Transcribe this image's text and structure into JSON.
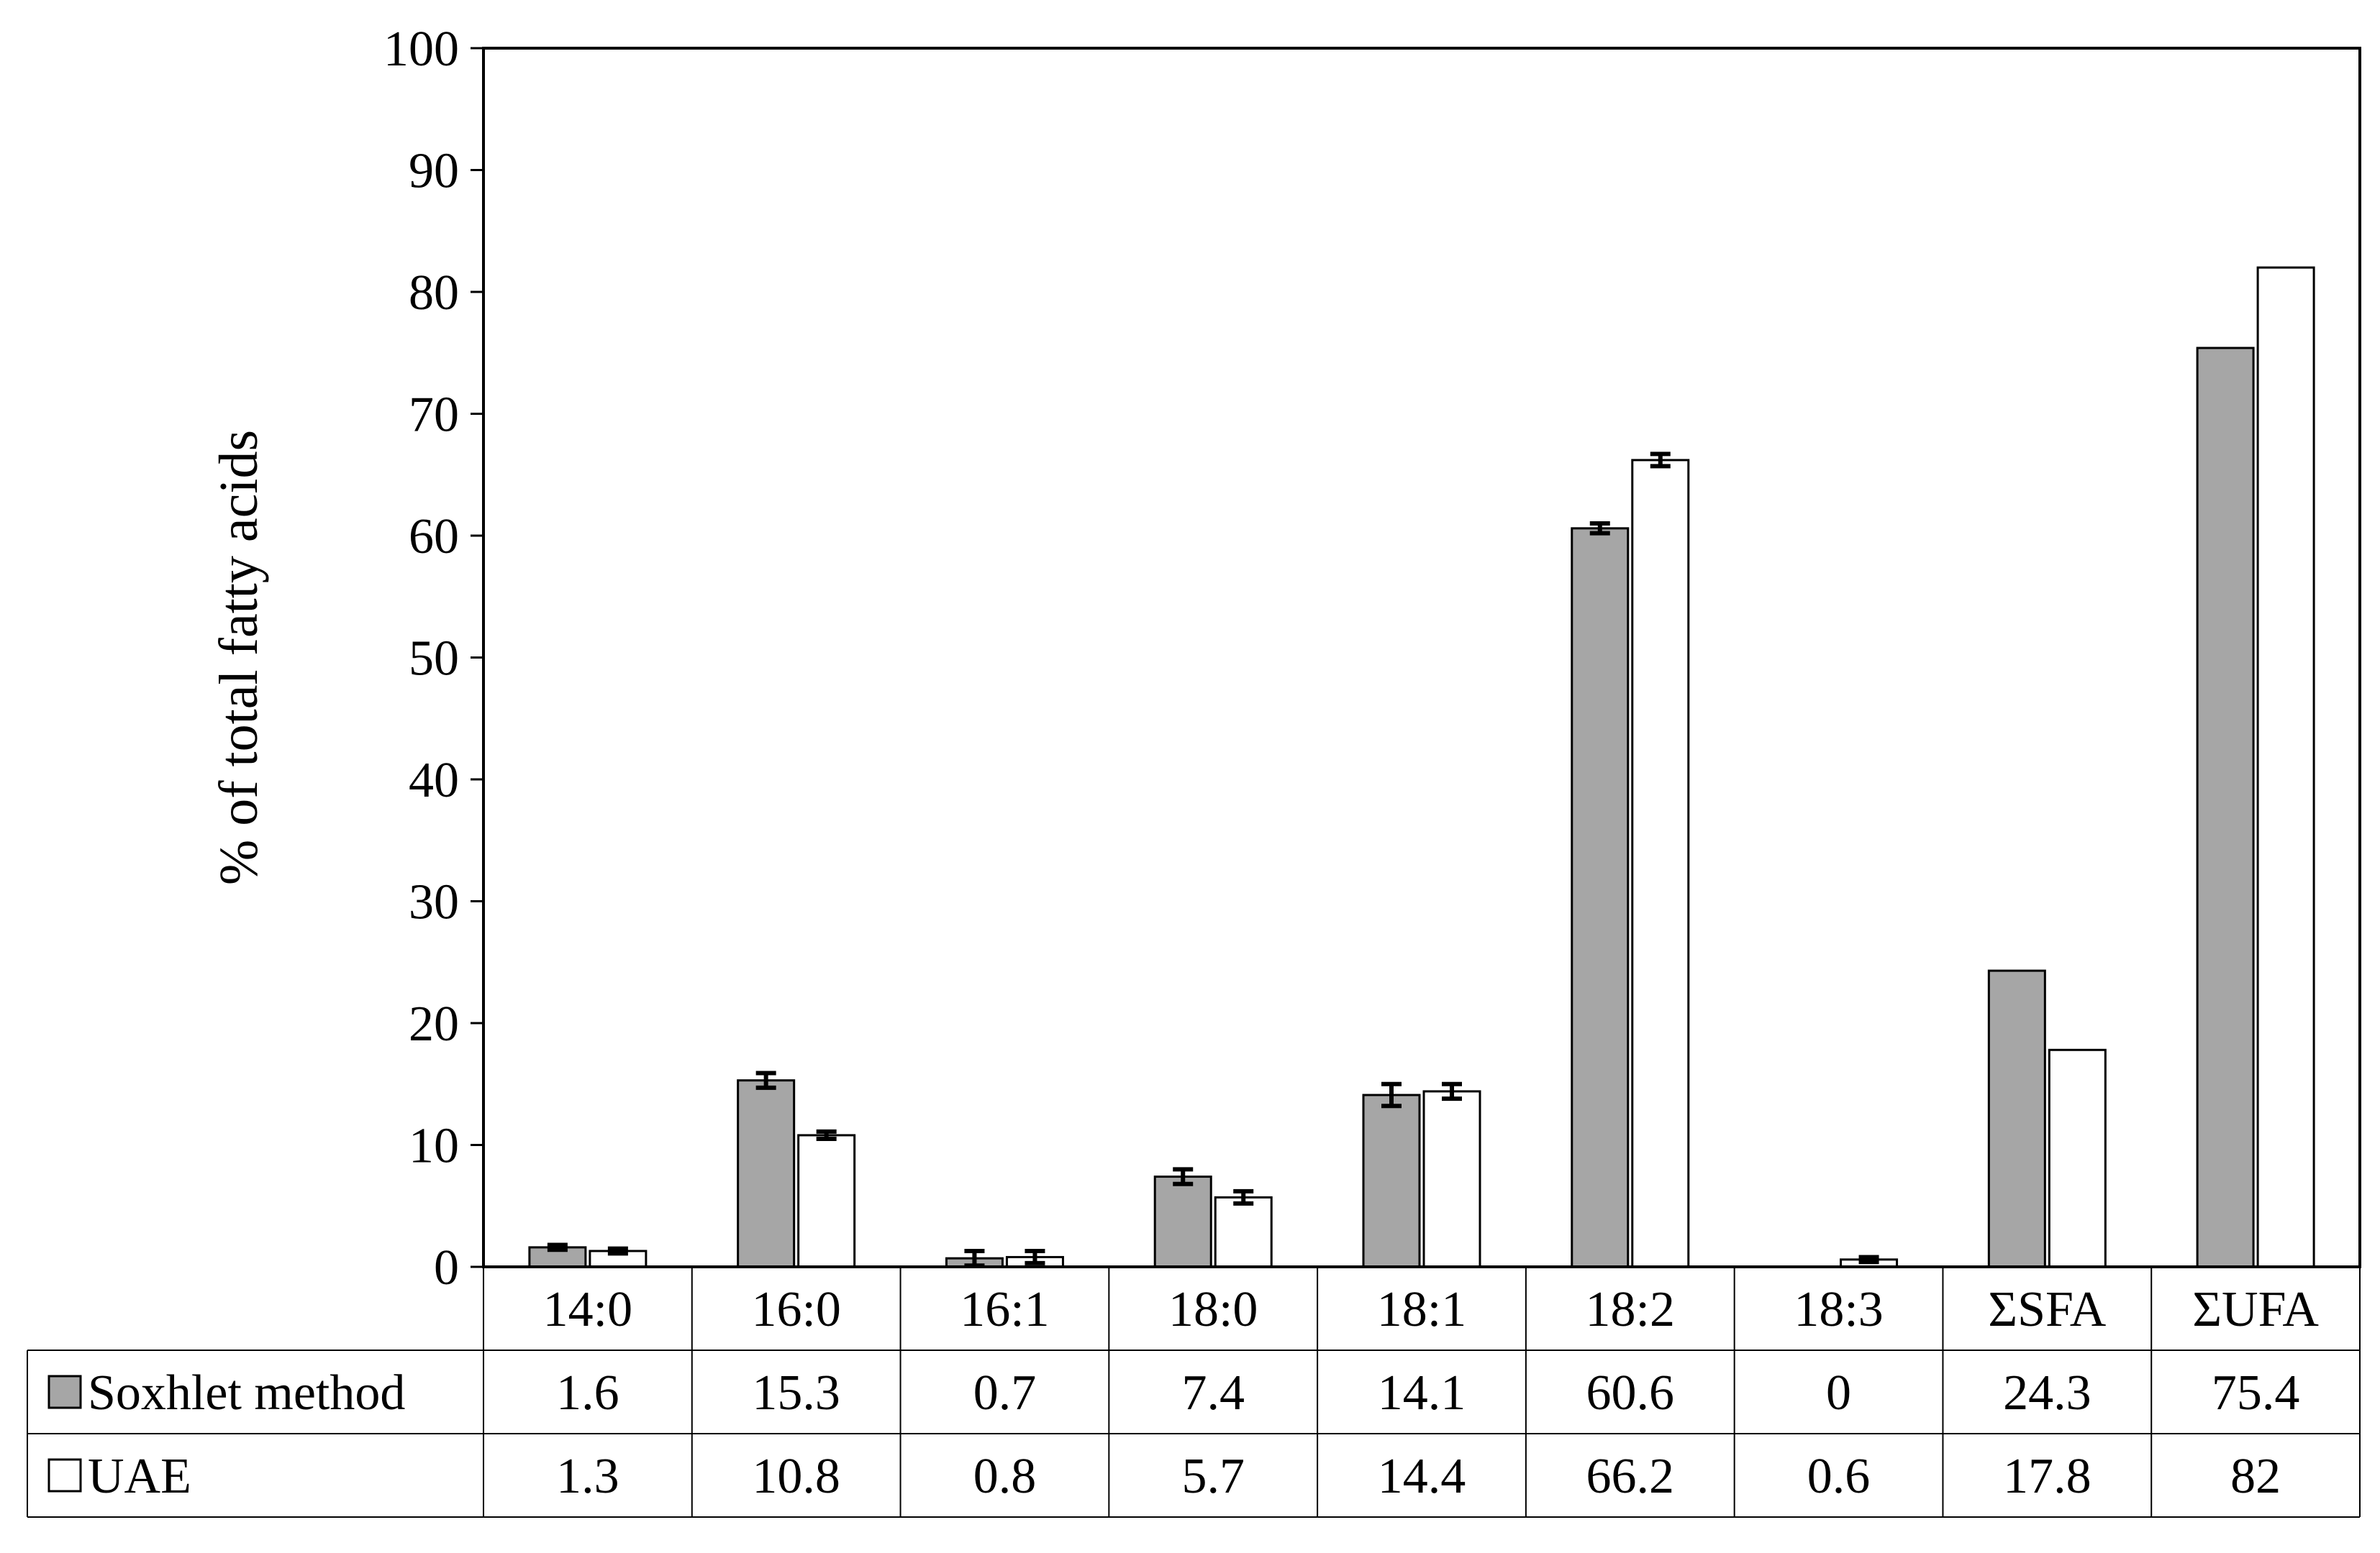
{
  "chart_data": {
    "type": "bar",
    "title": "",
    "xlabel": "",
    "ylabel": "% of total fatty acids",
    "ylim": [
      0,
      100
    ],
    "yticks": [
      0,
      10,
      20,
      30,
      40,
      50,
      60,
      70,
      80,
      90,
      100
    ],
    "categories": [
      "14:0",
      "16:0",
      "16:1",
      "18:0",
      "18:1",
      "18:2",
      "18:3",
      "ΣSFA",
      "ΣUFA"
    ],
    "series": [
      {
        "name": "Soxhlet method",
        "color": "#a6a6a6",
        "values": [
          1.6,
          15.3,
          0.7,
          7.4,
          14.1,
          60.6,
          0,
          24.3,
          75.4
        ],
        "value_labels": [
          "1.6",
          "15.3",
          "0.7",
          "7.4",
          "14.1",
          "60.6",
          "0",
          "24.3",
          "75.4"
        ],
        "error": [
          0.2,
          0.6,
          0.6,
          0.6,
          0.9,
          0.4,
          null,
          null,
          null
        ]
      },
      {
        "name": "UAE",
        "color": "#ffffff",
        "values": [
          1.3,
          10.8,
          0.8,
          5.7,
          14.4,
          66.2,
          0.6,
          17.8,
          82
        ],
        "value_labels": [
          "1.3",
          "10.8",
          "0.8",
          "5.7",
          "14.4",
          "66.2",
          "0.6",
          "17.8",
          "82"
        ],
        "error": [
          0.2,
          0.3,
          0.5,
          0.5,
          0.6,
          0.5,
          0.2,
          null,
          null
        ]
      }
    ],
    "data_table": true,
    "grid": false,
    "legend": "in data table rows"
  }
}
